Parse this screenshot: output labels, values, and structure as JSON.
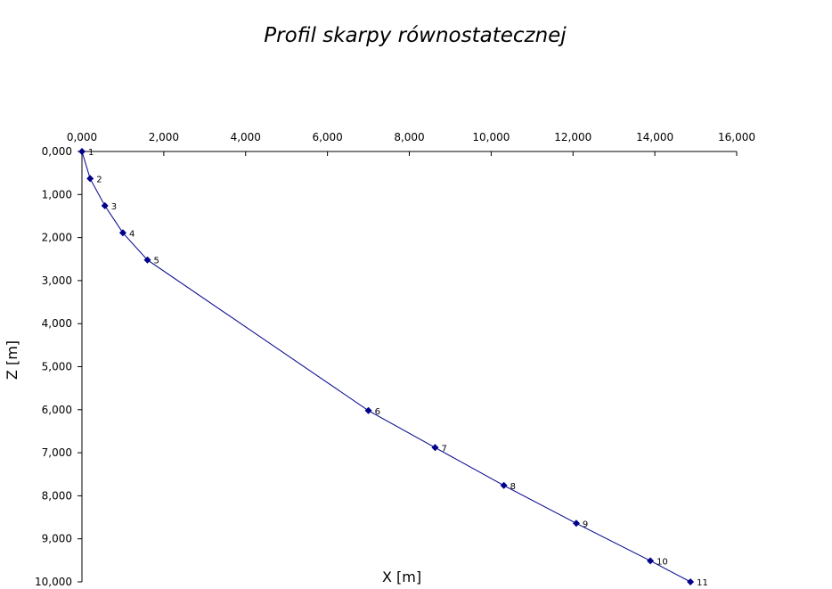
{
  "chart_data": {
    "type": "scatter",
    "title": "Profil skarpy równostatecznej",
    "xlabel": "X [m]",
    "ylabel": "Z [m]",
    "xlim": [
      0,
      16
    ],
    "ylim": [
      0,
      10
    ],
    "y_inverted": true,
    "x_axis_position": "top",
    "x_ticks": [
      "0,000",
      "2,000",
      "4,000",
      "6,000",
      "8,000",
      "10,000",
      "12,000",
      "14,000",
      "16,000"
    ],
    "y_ticks": [
      "0,000",
      "1,000",
      "2,000",
      "3,000",
      "4,000",
      "5,000",
      "6,000",
      "7,000",
      "8,000",
      "9,000",
      "10,000"
    ],
    "grid": false,
    "legend": "none",
    "series_color": "#00008b",
    "points": [
      {
        "label": "1",
        "x": 0.0,
        "z": 0.0
      },
      {
        "label": "2",
        "x": 0.2,
        "z": 0.63
      },
      {
        "label": "3",
        "x": 0.56,
        "z": 1.26
      },
      {
        "label": "4",
        "x": 1.0,
        "z": 1.89
      },
      {
        "label": "5",
        "x": 1.6,
        "z": 2.52
      },
      {
        "label": "6",
        "x": 7.0,
        "z": 6.02
      },
      {
        "label": "7",
        "x": 8.63,
        "z": 6.88
      },
      {
        "label": "8",
        "x": 10.31,
        "z": 7.76
      },
      {
        "label": "9",
        "x": 12.08,
        "z": 8.64
      },
      {
        "label": "10",
        "x": 13.89,
        "z": 9.51
      },
      {
        "label": "11",
        "x": 14.87,
        "z": 10.0
      }
    ]
  }
}
